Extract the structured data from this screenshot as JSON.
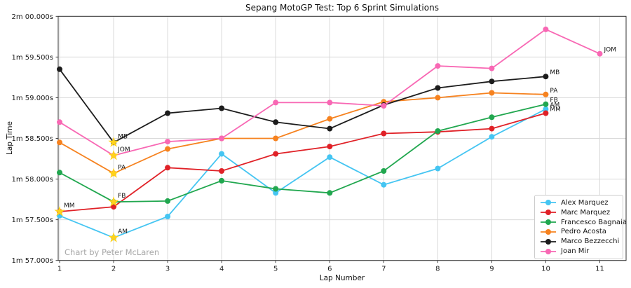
{
  "watermark": "Chart by Peter McLaren",
  "chart_data": {
    "type": "line",
    "title": "Sepang MotoGP Test: Top 6 Sprint Simulations",
    "xlabel": "Lap Number",
    "ylabel": "Lap Time",
    "xlim": [
      0.97,
      11.5
    ],
    "ylim_seconds": [
      117.0,
      120.0
    ],
    "grid": true,
    "legend_position": "lower right",
    "star_color": "#FFD21C",
    "marker": "circle",
    "best_lap_marker": "star",
    "xticks": [
      1,
      2,
      3,
      4,
      5,
      6,
      7,
      8,
      9,
      10,
      11
    ],
    "yticks": [
      {
        "seconds": 120.0,
        "label": "2m 00.000s"
      },
      {
        "seconds": 119.5,
        "label": "1m 59.500s"
      },
      {
        "seconds": 119.0,
        "label": "1m 59.000s"
      },
      {
        "seconds": 118.5,
        "label": "1m 58.500s"
      },
      {
        "seconds": 118.0,
        "label": "1m 58.000s"
      },
      {
        "seconds": 117.5,
        "label": "1m 57.500s"
      },
      {
        "seconds": 117.0,
        "label": "1m 57.000s"
      }
    ],
    "series": [
      {
        "name": "Alex Marquez",
        "abbr": "AM",
        "color": "#45C5F2",
        "best_lap": 2,
        "laps": [
          1,
          2,
          3,
          4,
          5,
          6,
          7,
          8,
          9,
          10
        ],
        "values_seconds": [
          117.55,
          117.28,
          117.54,
          118.31,
          117.83,
          118.27,
          117.93,
          118.13,
          118.52,
          118.86
        ]
      },
      {
        "name": "Marc Marquez",
        "abbr": "MM",
        "color": "#E02127",
        "best_lap": 1,
        "laps": [
          1,
          2,
          3,
          4,
          5,
          6,
          7,
          8,
          9,
          10
        ],
        "values_seconds": [
          117.6,
          117.66,
          118.14,
          118.1,
          118.31,
          118.4,
          118.56,
          118.58,
          118.62,
          118.81
        ]
      },
      {
        "name": "Francesco Bagnaia",
        "abbr": "FB",
        "color": "#21A74F",
        "best_lap": 2,
        "laps": [
          1,
          2,
          3,
          4,
          5,
          6,
          7,
          8,
          9,
          10
        ],
        "values_seconds": [
          118.08,
          117.72,
          117.73,
          117.98,
          117.88,
          117.83,
          118.1,
          118.59,
          118.76,
          118.92
        ]
      },
      {
        "name": "Pedro Acosta",
        "abbr": "PA",
        "color": "#F6821F",
        "best_lap": 2,
        "laps": [
          1,
          2,
          3,
          4,
          5,
          6,
          7,
          8,
          9,
          10
        ],
        "values_seconds": [
          118.45,
          118.07,
          118.37,
          118.5,
          118.5,
          118.74,
          118.95,
          119.0,
          119.06,
          119.04
        ]
      },
      {
        "name": "Marco Bezzecchi",
        "abbr": "MB",
        "color": "#1C1C1C",
        "best_lap": 2,
        "laps": [
          1,
          2,
          3,
          4,
          5,
          6,
          7,
          8,
          9,
          10
        ],
        "values_seconds": [
          119.35,
          118.45,
          118.81,
          118.87,
          118.7,
          118.62,
          118.91,
          119.12,
          119.2,
          119.26
        ]
      },
      {
        "name": "Joan Mir",
        "abbr": "JOM",
        "color": "#F868B4",
        "best_lap": 2,
        "laps": [
          1,
          2,
          3,
          4,
          5,
          6,
          7,
          8,
          9,
          10,
          11
        ],
        "values_seconds": [
          118.7,
          118.29,
          118.46,
          118.5,
          118.94,
          118.94,
          118.9,
          119.39,
          119.36,
          119.84,
          119.54
        ]
      }
    ]
  }
}
